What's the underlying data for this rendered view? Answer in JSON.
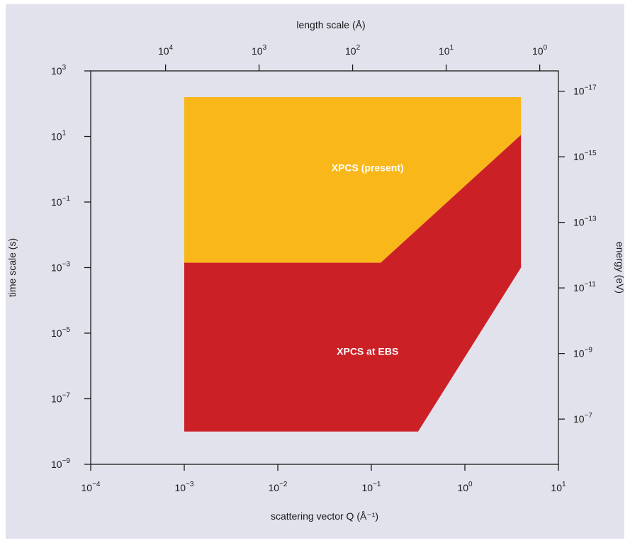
{
  "chart_data": {
    "type": "area",
    "colors": {
      "background": "#e1e2ec",
      "xpcs_present": "#f9b71a",
      "xpcs_ebs": "#cc2027",
      "frame": "#1a1a1a"
    },
    "xlabel": "scattering vector Q (Å⁻¹)",
    "ylabel": "time scale (s)",
    "top_xlabel": "length scale (Å)",
    "right_ylabel": "energy (eV)",
    "x_scale": "log",
    "y_scale": "log",
    "xlim_exp": [
      -4,
      1
    ],
    "ylim_exp": [
      -9,
      3
    ],
    "x_ticks": [
      {
        "base": "10",
        "exp": "−4",
        "value": -4
      },
      {
        "base": "10",
        "exp": "−3",
        "value": -3
      },
      {
        "base": "10",
        "exp": "−2",
        "value": -2
      },
      {
        "base": "10",
        "exp": "−1",
        "value": -1
      },
      {
        "base": "10",
        "exp": "0",
        "value": 0
      },
      {
        "base": "10",
        "exp": "1",
        "value": 1
      }
    ],
    "y_ticks": [
      {
        "base": "10",
        "exp": "−9",
        "value": -9
      },
      {
        "base": "10",
        "exp": "−7",
        "value": -7
      },
      {
        "base": "10",
        "exp": "−5",
        "value": -5
      },
      {
        "base": "10",
        "exp": "−3",
        "value": -3
      },
      {
        "base": "10",
        "exp": "−1",
        "value": -1
      },
      {
        "base": "10",
        "exp": "1",
        "value": 1
      },
      {
        "base": "10",
        "exp": "3",
        "value": 3
      }
    ],
    "top_ticks": [
      {
        "base": "10",
        "exp": "4",
        "x_value": -3.2
      },
      {
        "base": "10",
        "exp": "3",
        "x_value": -2.2
      },
      {
        "base": "10",
        "exp": "2",
        "x_value": -1.2
      },
      {
        "base": "10",
        "exp": "1",
        "x_value": -0.2
      },
      {
        "base": "10",
        "exp": "0",
        "x_value": 0.8
      }
    ],
    "right_ticks": [
      {
        "base": "10",
        "exp": "−17",
        "y_value": 2.38
      },
      {
        "base": "10",
        "exp": "−15",
        "y_value": 0.38
      },
      {
        "base": "10",
        "exp": "−13",
        "y_value": -1.62
      },
      {
        "base": "10",
        "exp": "−11",
        "y_value": -3.62
      },
      {
        "base": "10",
        "exp": "−9",
        "y_value": -5.62
      },
      {
        "base": "10",
        "exp": "−7",
        "y_value": -7.62
      }
    ],
    "series": [
      {
        "name": "XPCS (present)",
        "color": "#f9b71a",
        "label_at": [
          -1.04,
          0.05
        ],
        "polygon": [
          [
            -3.0,
            2.2
          ],
          [
            0.6,
            2.2
          ],
          [
            0.6,
            1.05
          ],
          [
            -0.9,
            -2.85
          ],
          [
            -3.0,
            -2.85
          ]
        ]
      },
      {
        "name": "XPCS at EBS",
        "color": "#cc2027",
        "label_at": [
          -1.04,
          -5.55
        ],
        "polygon": [
          [
            -3.0,
            -2.85
          ],
          [
            -0.9,
            -2.85
          ],
          [
            0.6,
            1.05
          ],
          [
            0.6,
            -3.0
          ],
          [
            -0.5,
            -8.0
          ],
          [
            -3.0,
            -8.0
          ]
        ]
      }
    ]
  }
}
